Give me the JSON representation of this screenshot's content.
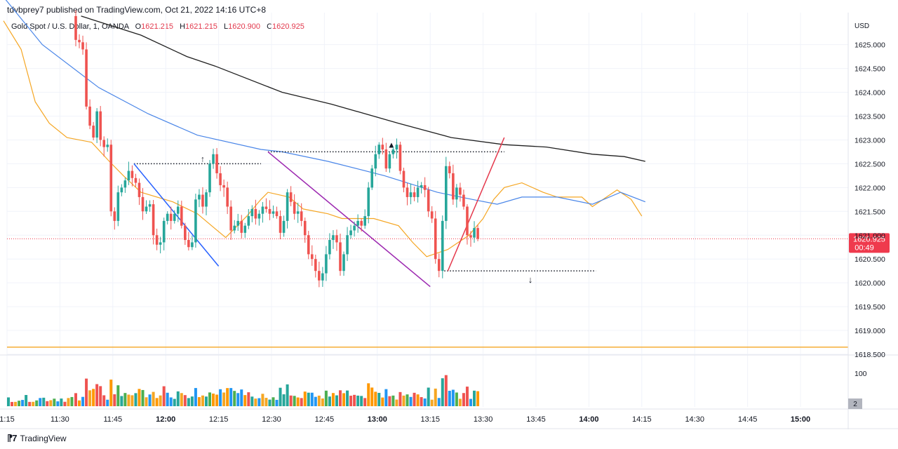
{
  "header": {
    "published": "tdvbprey7 published on TradingView.com, Oct 21, 2022 14:16 UTC+8"
  },
  "legend": {
    "symbol": "Gold Spot / U.S. Dollar, 1, OANDA",
    "o_label": "O",
    "o": "1621.215",
    "h_label": "H",
    "h": "1621.215",
    "l_label": "L",
    "l": "1620.900",
    "c_label": "C",
    "c": "1620.925"
  },
  "footer": {
    "brand": "TradingView"
  },
  "colors": {
    "up": "#26a69a",
    "down": "#ef5350",
    "ema_fast": "#f5a623",
    "ema_slow": "#4a86e8",
    "ema_long": "#1f1f1f",
    "support": "#f5a623",
    "last_price": "#ef3a4d",
    "trend_blue": "#2962ff",
    "trend_purple": "#9c27b0",
    "trend_red": "#e5394d"
  },
  "chart_data": {
    "type": "candlestick",
    "currency": "USD",
    "ylim": [
      1618.5,
      1625.3
    ],
    "y_ticks": [
      "1625.000",
      "1624.500",
      "1624.000",
      "1623.500",
      "1623.000",
      "1622.500",
      "1622.000",
      "1621.500",
      "1621.000",
      "1620.500",
      "1620.000",
      "1619.500",
      "1619.000",
      "1618.500"
    ],
    "x_ticks": [
      "1:15",
      "11:30",
      "11:45",
      "12:00",
      "12:15",
      "12:30",
      "12:45",
      "13:00",
      "13:15",
      "13:30",
      "13:45",
      "14:00",
      "14:15",
      "14:30",
      "14:45",
      "15:00"
    ],
    "time_range": [
      "11:13",
      "15:10"
    ],
    "last_price": "1620.925",
    "countdown": "00:49",
    "volume_ref_label": "100",
    "volume_badge": "2",
    "support_level": 1618.65,
    "annotations": {
      "resistance": {
        "price": 1622.75,
        "from": "12:29",
        "to": "13:36",
        "marker": "▲"
      },
      "support": {
        "price": 1620.25,
        "from": "13:19",
        "to": "14:02",
        "marker": "↓"
      },
      "left_high": {
        "price": 1622.5,
        "from": "11:51",
        "to": "12:27",
        "marker": "↑"
      }
    },
    "trendlines": [
      {
        "color": "blue",
        "from": [
          "11:51",
          1622.5
        ],
        "to": [
          "12:15",
          1620.35
        ]
      },
      {
        "color": "purple",
        "from": [
          "12:29",
          1622.75
        ],
        "to": [
          "13:15",
          1619.92
        ]
      },
      {
        "color": "red",
        "from": [
          "13:20",
          1620.25
        ],
        "to": [
          "13:36",
          1623.05
        ]
      }
    ],
    "series": [
      {
        "name": "Price (close)",
        "type": "candle",
        "close": [
          1625.1,
          1625.05,
          1624.9,
          1623.7,
          1623.3,
          1623.05,
          1623.6,
          1623.0,
          1622.85,
          1622.9,
          1621.5,
          1621.3,
          1621.9,
          1622.0,
          1622.15,
          1622.35,
          1622.2,
          1622.1,
          1621.8,
          1621.5,
          1621.6,
          1621.65,
          1621.0,
          1620.8,
          1620.85,
          1621.3,
          1621.45,
          1621.3,
          1621.45,
          1621.6,
          1621.2,
          1620.9,
          1620.75,
          1620.85,
          1621.75,
          1621.85,
          1621.6,
          1621.9,
          1622.5,
          1622.7,
          1622.3,
          1622.05,
          1622.0,
          1621.6,
          1621.1,
          1621.2,
          1621.3,
          1621.05,
          1621.2,
          1621.4,
          1621.55,
          1621.35,
          1621.45,
          1621.6,
          1621.55,
          1621.45,
          1621.5,
          1621.4,
          1621.05,
          1621.3,
          1621.9,
          1621.7,
          1621.45,
          1621.5,
          1621.3,
          1621.0,
          1620.6,
          1620.5,
          1620.25,
          1620.05,
          1620.2,
          1620.6,
          1620.9,
          1621.0,
          1620.85,
          1620.25,
          1620.6,
          1621.0,
          1621.1,
          1621.2,
          1621.3,
          1621.2,
          1621.4,
          1622.0,
          1622.4,
          1622.7,
          1622.9,
          1622.8,
          1622.4,
          1622.7,
          1622.8,
          1622.9,
          1622.35,
          1622.0,
          1621.8,
          1621.9,
          1621.8,
          1622.0,
          1622.05,
          1621.95,
          1621.5,
          1621.35,
          1620.5,
          1620.25,
          1621.3,
          1622.45,
          1622.3,
          1621.75,
          1622.0,
          1621.85,
          1621.6,
          1621.0,
          1620.95,
          1621.15,
          1620.925
        ]
      },
      {
        "name": "EMA fast",
        "type": "line",
        "points": [
          [
            "11:14",
            1625.5
          ],
          [
            "11:19",
            1624.9
          ],
          [
            "11:23",
            1623.8
          ],
          [
            "11:27",
            1623.35
          ],
          [
            "11:32",
            1623.05
          ],
          [
            "11:39",
            1622.95
          ],
          [
            "11:44",
            1622.55
          ],
          [
            "11:48",
            1622.25
          ],
          [
            "11:53",
            1621.9
          ],
          [
            "12:02",
            1621.7
          ],
          [
            "12:09",
            1621.45
          ],
          [
            "12:13",
            1621.2
          ],
          [
            "12:17",
            1620.95
          ],
          [
            "12:23",
            1621.4
          ],
          [
            "12:27",
            1621.75
          ],
          [
            "12:29",
            1621.9
          ],
          [
            "12:35",
            1621.8
          ],
          [
            "12:39",
            1621.55
          ],
          [
            "12:46",
            1621.45
          ],
          [
            "12:50",
            1621.35
          ],
          [
            "12:59",
            1621.35
          ],
          [
            "13:06",
            1621.2
          ],
          [
            "13:10",
            1620.85
          ],
          [
            "13:14",
            1620.55
          ],
          [
            "13:20",
            1620.7
          ],
          [
            "13:26",
            1621.0
          ],
          [
            "13:30",
            1621.35
          ],
          [
            "13:33",
            1621.75
          ],
          [
            "13:36",
            1622.0
          ],
          [
            "13:41",
            1622.1
          ],
          [
            "13:47",
            1621.9
          ],
          [
            "13:51",
            1621.8
          ],
          [
            "13:58",
            1621.8
          ],
          [
            "14:01",
            1621.6
          ],
          [
            "14:05",
            1621.8
          ],
          [
            "14:08",
            1621.95
          ],
          [
            "14:12",
            1621.75
          ],
          [
            "14:15",
            1621.4
          ]
        ]
      },
      {
        "name": "EMA slow",
        "type": "line",
        "points": [
          [
            "11:14",
            1626.0
          ],
          [
            "11:25",
            1625.0
          ],
          [
            "11:41",
            1624.1
          ],
          [
            "11:55",
            1623.55
          ],
          [
            "12:09",
            1623.1
          ],
          [
            "12:27",
            1622.8
          ],
          [
            "12:33",
            1622.75
          ],
          [
            "12:46",
            1622.55
          ],
          [
            "13:02",
            1622.25
          ],
          [
            "13:17",
            1621.9
          ],
          [
            "13:27",
            1621.75
          ],
          [
            "13:34",
            1621.65
          ],
          [
            "13:41",
            1621.8
          ],
          [
            "13:51",
            1621.8
          ],
          [
            "14:01",
            1621.65
          ],
          [
            "14:09",
            1621.9
          ],
          [
            "14:16",
            1621.7
          ]
        ]
      },
      {
        "name": "EMA long",
        "type": "line",
        "points": [
          [
            "11:36",
            1625.6
          ],
          [
            "11:53",
            1625.2
          ],
          [
            "12:06",
            1624.75
          ],
          [
            "12:14",
            1624.55
          ],
          [
            "12:33",
            1624.0
          ],
          [
            "12:47",
            1623.75
          ],
          [
            "13:06",
            1623.35
          ],
          [
            "13:21",
            1623.05
          ],
          [
            "13:36",
            1622.9
          ],
          [
            "13:48",
            1622.85
          ],
          [
            "14:01",
            1622.7
          ],
          [
            "14:10",
            1622.65
          ],
          [
            "14:16",
            1622.55
          ]
        ]
      }
    ]
  }
}
